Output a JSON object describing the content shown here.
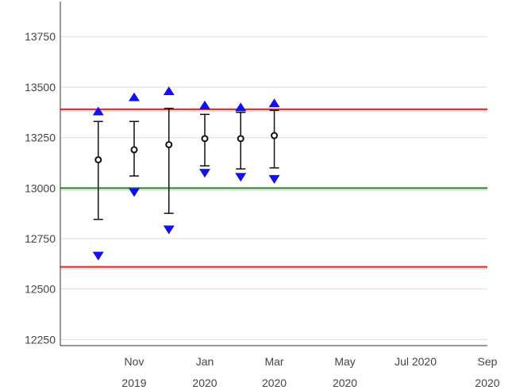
{
  "chart_data": {
    "type": "scatter",
    "title": "",
    "xlabel": "",
    "ylabel": "",
    "ylim": [
      12220,
      13900
    ],
    "grid": true,
    "y_ticks": [
      12250,
      12500,
      12750,
      13000,
      13250,
      13500,
      13750
    ],
    "x_range": [
      "2019-09-01",
      "2020-09-01"
    ],
    "x_ticks": [
      {
        "date": "2019-11-01",
        "line1": "Nov",
        "line2": "2019"
      },
      {
        "date": "2020-01-01",
        "line1": "Jan",
        "line2": "2020"
      },
      {
        "date": "2020-03-01",
        "line1": "Mar",
        "line2": "2020"
      },
      {
        "date": "2020-05-01",
        "line1": "May",
        "line2": "2020"
      },
      {
        "date": "2020-07-01",
        "line1": "Jul 2020",
        "line2": ""
      },
      {
        "date": "2020-09-01",
        "line1": "Sep",
        "line2": "2020"
      }
    ],
    "reference_lines": [
      {
        "value": 13390,
        "color": "#e8262a"
      },
      {
        "value": 13000,
        "color": "#2e8b2e"
      },
      {
        "value": 12610,
        "color": "#e8262a"
      }
    ],
    "points": [
      {
        "date": "2019-10-01",
        "mean": 13140,
        "err_low": 12845,
        "err_high": 13330,
        "max": 13380,
        "min": 12665
      },
      {
        "date": "2019-11-01",
        "mean": 13190,
        "err_low": 13060,
        "err_high": 13330,
        "max": 13450,
        "min": 12980
      },
      {
        "date": "2019-12-01",
        "mean": 13215,
        "err_low": 12875,
        "err_high": 13395,
        "max": 13480,
        "min": 12795
      },
      {
        "date": "2020-01-01",
        "mean": 13245,
        "err_low": 13110,
        "err_high": 13365,
        "max": 13410,
        "min": 13075
      },
      {
        "date": "2020-02-01",
        "mean": 13245,
        "err_low": 13095,
        "err_high": 13375,
        "max": 13400,
        "min": 13055
      },
      {
        "date": "2020-03-01",
        "mean": 13260,
        "err_low": 13100,
        "err_high": 13385,
        "max": 13420,
        "min": 13045
      }
    ],
    "colors": {
      "grid": "#dddddd",
      "axis": "#333333",
      "marker": "#1111ee",
      "errorbar": "#111111",
      "mean_point": "#111111"
    },
    "legend": "none"
  }
}
